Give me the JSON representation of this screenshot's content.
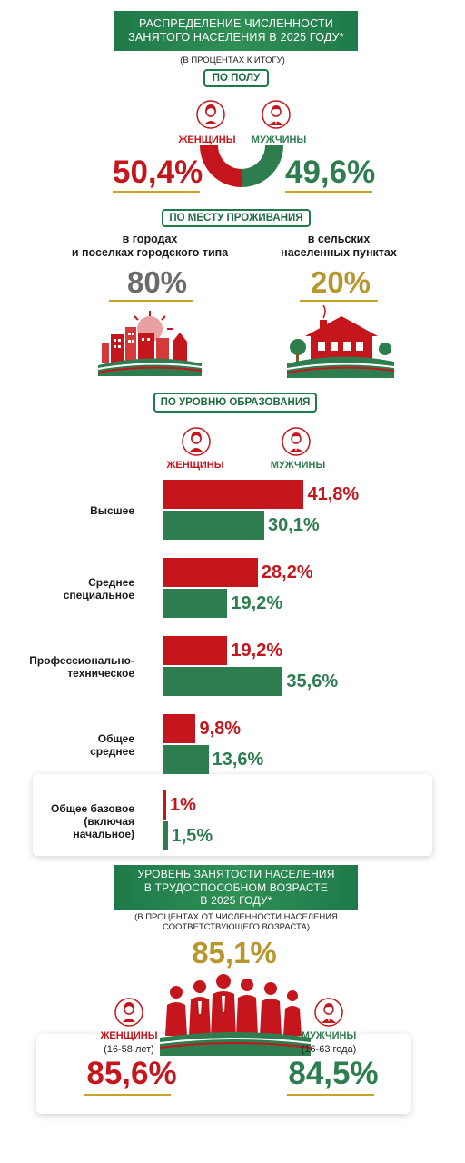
{
  "section1": {
    "title_line1": "РАСПРЕДЕЛЕНИЕ ЧИСЛЕННОСТИ",
    "title_line2": "ЗАНЯТОГО НАСЕЛЕНИЯ В 2025 ГОДУ*",
    "subtitle": "(В ПРОЦЕНТАХ К ИТОГУ)"
  },
  "by_sex": {
    "pill": "ПО ПОЛУ",
    "women_label": "ЖЕНЩИНЫ",
    "men_label": "МУЖЧИНЫ",
    "women_value": "50,4%",
    "men_value": "49,6%"
  },
  "by_residence": {
    "pill": "ПО МЕСТУ ПРОЖИВАНИЯ",
    "urban_line1": "в городах",
    "urban_line2": "и поселках городского типа",
    "rural_line1": "в сельских",
    "rural_line2": "населенных пунктах",
    "urban_value": "80%",
    "rural_value": "20%"
  },
  "by_education": {
    "pill": "ПО УРОВНЮ ОБРАЗОВАНИЯ",
    "women_label": "ЖЕНЩИНЫ",
    "men_label": "МУЖЧИНЫ"
  },
  "section2": {
    "title_line1": "УРОВЕНЬ ЗАНЯТОСТИ НАСЕЛЕНИЯ",
    "title_line2": "В ТРУДОСПОСОБНОМ ВОЗРАСТЕ",
    "title_line3": "В 2025 ГОДУ*",
    "subtitle_line1": "(В ПРОЦЕНТАХ ОТ ЧИСЛЕННОСТИ НАСЕЛЕНИЯ",
    "subtitle_line2": "СООТВЕТСТВУЮЩЕГО ВОЗРАСТА)",
    "total_value": "85,1%",
    "women_label": "ЖЕНЩИНЫ",
    "women_age": "(16-58 лет)",
    "men_label": "МУЖЧИНЫ",
    "men_age": "(16-63 года)",
    "women_value": "85,6%",
    "men_value": "84,5%"
  },
  "colors": {
    "red": "#c4161c",
    "green": "#2e7d4f",
    "gold": "#c9a227",
    "grey": "#6b6b6b"
  },
  "icons": [
    "woman-icon",
    "man-icon",
    "city-illustration-icon",
    "village-house-icon",
    "workers-group-icon"
  ],
  "chart_data": [
    {
      "type": "pie",
      "categories": [
        "ЖЕНЩИНЫ",
        "МУЖЧИНЫ"
      ],
      "values": [
        50.4,
        49.6
      ]
    },
    {
      "type": "bar",
      "categories": [
        "в городах и поселках городского типа",
        "в сельских населенных пунктах"
      ],
      "values": [
        80,
        20
      ]
    },
    {
      "type": "bar",
      "orientation": "horizontal",
      "categories": [
        "Высшее",
        "Среднее специальное",
        "Профессионально-техническое",
        "Общее среднее",
        "Общее базовое (включая начальное)"
      ],
      "category_lines": [
        [
          "Высшее"
        ],
        [
          "Среднее",
          "специальное"
        ],
        [
          "Профессионально-",
          "техническое"
        ],
        [
          "Общее",
          "среднее"
        ],
        [
          "Общее базовое",
          "(включая",
          "начальное)"
        ]
      ],
      "series": [
        {
          "name": "ЖЕНЩИНЫ",
          "values": [
            41.8,
            28.2,
            19.2,
            9.8,
            1
          ],
          "labels": [
            "41,8%",
            "28,2%",
            "19,2%",
            "9,8%",
            "1%"
          ]
        },
        {
          "name": "МУЖЧИНЫ",
          "values": [
            30.1,
            19.2,
            35.6,
            13.6,
            1.5
          ],
          "labels": [
            "30,1%",
            "19,2%",
            "35,6%",
            "13,6%",
            "1,5%"
          ]
        }
      ]
    },
    {
      "type": "bar",
      "categories": [
        "ЖЕНЩИНЫ (16-58 лет)",
        "МУЖЧИНЫ (16-63 года)"
      ],
      "values": [
        85.6,
        84.5
      ],
      "total": 85.1
    }
  ]
}
